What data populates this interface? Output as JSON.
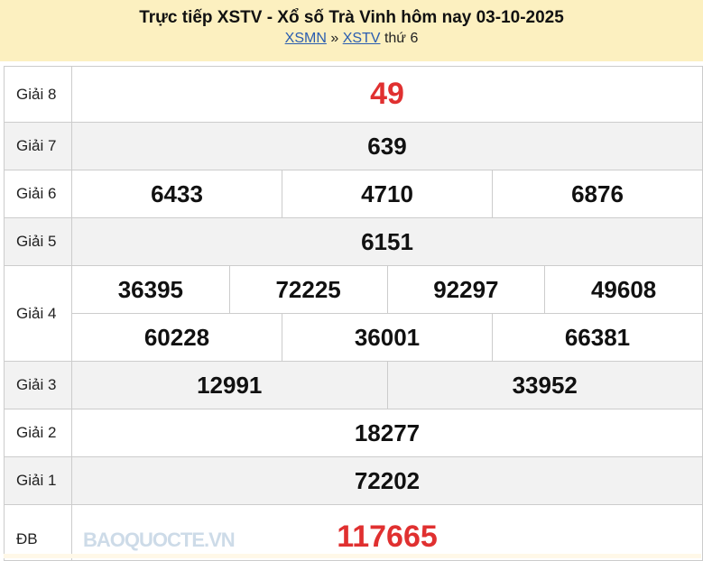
{
  "header": {
    "title": "Trực tiếp XSTV - Xổ số Trà Vinh hôm nay 03-10-2025",
    "breadcrumb": {
      "link1": "XSMN",
      "sep": "»",
      "link2": "XSTV",
      "suffix": "thứ 6"
    }
  },
  "prizes": [
    {
      "label": "Giải 8",
      "lines": [
        [
          "49"
        ]
      ],
      "highlight": true
    },
    {
      "label": "Giải 7",
      "lines": [
        [
          "639"
        ]
      ]
    },
    {
      "label": "Giải 6",
      "lines": [
        [
          "6433",
          "4710",
          "6876"
        ]
      ]
    },
    {
      "label": "Giải 5",
      "lines": [
        [
          "6151"
        ]
      ]
    },
    {
      "label": "Giải 4",
      "lines": [
        [
          "36395",
          "72225",
          "92297",
          "49608"
        ],
        [
          "60228",
          "36001",
          "66381"
        ]
      ]
    },
    {
      "label": "Giải 3",
      "lines": [
        [
          "12991",
          "33952"
        ]
      ]
    },
    {
      "label": "Giải 2",
      "lines": [
        [
          "18277"
        ]
      ]
    },
    {
      "label": "Giải 1",
      "lines": [
        [
          "72202"
        ]
      ]
    },
    {
      "label": "ĐB",
      "lines": [
        [
          "117665"
        ]
      ],
      "highlight": true
    }
  ],
  "watermark": "BAOQUOCTE.VN",
  "colors": {
    "header_bg": "#fcf0c0",
    "highlight": "#e03030",
    "link": "#2a5db0",
    "alt_row": "#f2f2f2"
  }
}
